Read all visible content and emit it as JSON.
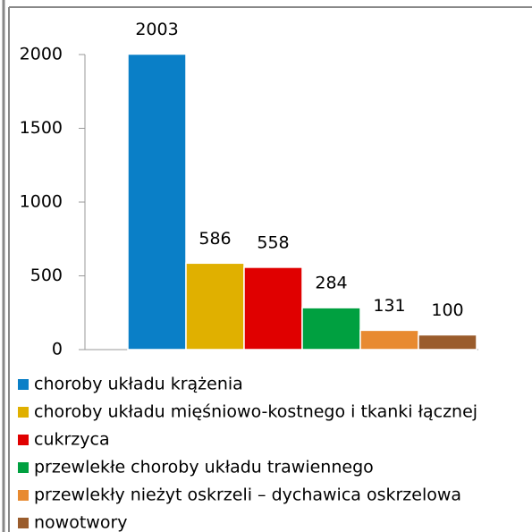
{
  "chart_data": {
    "type": "bar",
    "categories": [
      "choroby układu krążenia",
      "choroby układu mięśniowo-kostnego i tkanki łącznej",
      "cukrzyca",
      "przewlekłe choroby układu trawiennego",
      "przewlekły nieżyt oskrzeli – dychawica oskrzelowa",
      "nowotwory"
    ],
    "values": [
      2003,
      586,
      558,
      284,
      131,
      100
    ],
    "colors": [
      "#0a7fc7",
      "#e0b000",
      "#e00000",
      "#00a040",
      "#e88a30",
      "#9a5c2c"
    ],
    "ylim": [
      0,
      2000
    ],
    "yticks": [
      0,
      500,
      1000,
      1500,
      2000
    ],
    "grid": false
  }
}
